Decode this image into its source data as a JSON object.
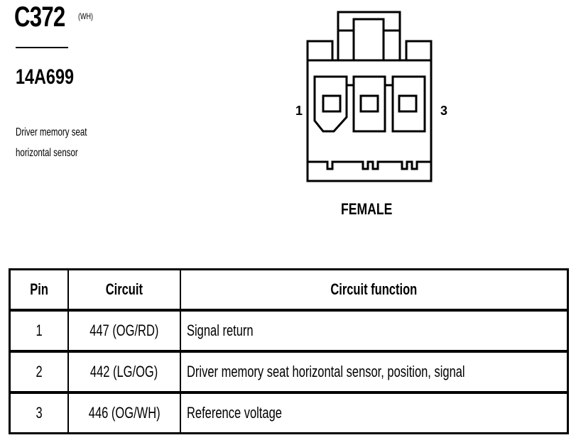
{
  "connector": {
    "id": "C372",
    "color": "(WH)",
    "part_number": "14A699",
    "description_lines": [
      "Driver memory seat",
      "horizontal sensor"
    ],
    "gender": "FEMALE",
    "pin_labels": [
      "1",
      "3"
    ]
  },
  "table": {
    "headers": [
      "Pin",
      "Circuit",
      "Circuit function"
    ],
    "rows": [
      {
        "pin": "1",
        "circuit": "447 (OG/RD)",
        "function": "Signal return"
      },
      {
        "pin": "2",
        "circuit": "442 (LG/OG)",
        "function": "Driver memory seat horizontal sensor, position, signal"
      },
      {
        "pin": "3",
        "circuit": "446 (OG/WH)",
        "function": "Reference voltage"
      }
    ]
  }
}
